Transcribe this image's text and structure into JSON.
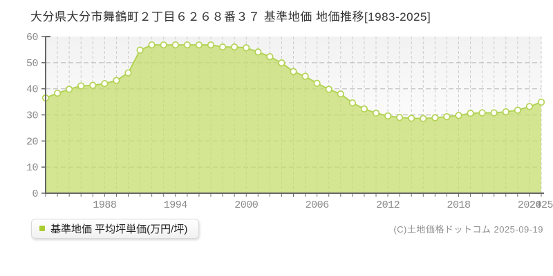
{
  "title": "大分県大分市舞鶴町２丁目６２６８番３７ 基準地価 地価推移[1983-2025]",
  "legend": {
    "label": "基準地価 平均坪単価(万円/坪)",
    "marker_color": "#a9cc2f"
  },
  "copyright": "(C)土地価格ドットコム 2025-09-19",
  "chart_data": {
    "type": "area",
    "title": "大分県大分市舞鶴町２丁目６２６８番３７ 基準地価 地価推移[1983-2025]",
    "series_name": "基準地価 平均坪単価(万円/坪)",
    "ylabel": "万円/坪",
    "x": [
      1983,
      1984,
      1985,
      1986,
      1987,
      1988,
      1989,
      1990,
      1991,
      1992,
      1993,
      1994,
      1995,
      1996,
      1997,
      1998,
      1999,
      2000,
      2001,
      2002,
      2003,
      2004,
      2005,
      2006,
      2007,
      2008,
      2009,
      2010,
      2011,
      2012,
      2013,
      2014,
      2015,
      2016,
      2017,
      2018,
      2019,
      2020,
      2021,
      2022,
      2023,
      2024,
      2025
    ],
    "values": [
      36.5,
      38.3,
      39.8,
      41.1,
      41.3,
      42.0,
      43.2,
      46.1,
      54.8,
      56.8,
      56.8,
      56.8,
      56.8,
      56.8,
      56.8,
      56.0,
      56.0,
      55.7,
      54.1,
      52.3,
      49.9,
      46.6,
      44.8,
      42.1,
      39.8,
      38.0,
      34.6,
      32.3,
      30.7,
      29.6,
      29.0,
      28.7,
      28.6,
      28.9,
      29.3,
      29.8,
      30.6,
      30.8,
      30.8,
      31.2,
      31.8,
      33.2,
      34.9
    ],
    "ylim": [
      0,
      60
    ],
    "yticks": [
      0,
      10,
      20,
      30,
      40,
      50,
      60
    ],
    "xtick_labels": [
      1988,
      1994,
      2000,
      2006,
      2012,
      2018,
      2024,
      2025
    ],
    "grid": true,
    "legend_position": "bottom-left",
    "colors": {
      "fill": "#c3dc68",
      "fill_opacity": 0.72,
      "line": "#b3d355",
      "marker_fill": "#fffef9",
      "axis": "#666666",
      "grid_v": "#cccccc",
      "grid_h": "#c6c6c6",
      "tick_label": "#8a8a8a"
    }
  }
}
